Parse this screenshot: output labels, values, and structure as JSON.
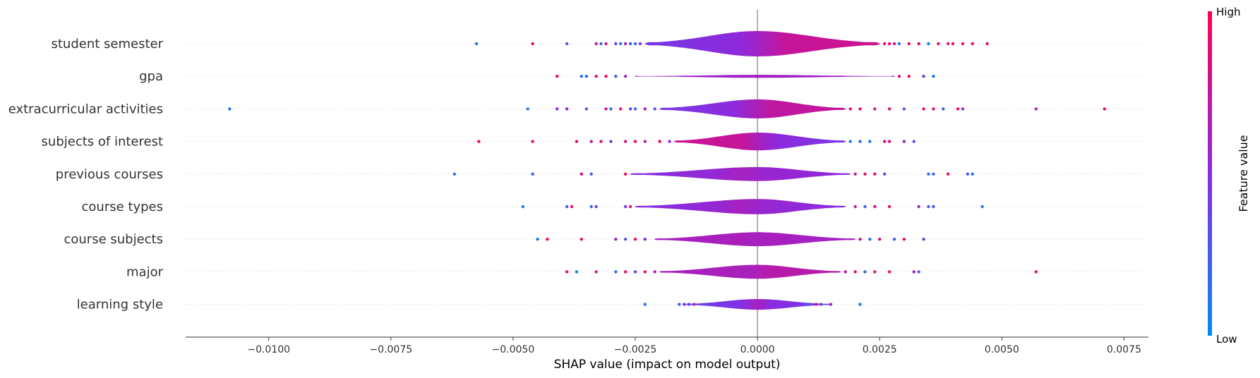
{
  "chart_data": {
    "type": "violin",
    "xlabel": "SHAP value (impact on model output)",
    "xlim": [
      -0.0117,
      0.008
    ],
    "xticks": [
      -0.01,
      -0.0075,
      -0.005,
      -0.0025,
      0.0,
      0.0025,
      0.005,
      0.0075
    ],
    "xtick_labels": [
      "−0.0100",
      "−0.0075",
      "−0.0050",
      "−0.0025",
      "0.0000",
      "0.0025",
      "0.0050",
      "0.0075"
    ],
    "zero_line": 0.0,
    "features": [
      {
        "name": "student semester",
        "violin_extent": [
          -0.0023,
          0.0025
        ],
        "violin_width": 1.0,
        "points": [
          {
            "x": -0.00575,
            "c": 0.1
          },
          {
            "x": -0.0046,
            "c": 0.95
          },
          {
            "x": -0.0039,
            "c": 0.3
          },
          {
            "x": -0.0033,
            "c": 0.7
          },
          {
            "x": -0.0032,
            "c": 0.2
          },
          {
            "x": -0.0031,
            "c": 0.8
          },
          {
            "x": -0.0029,
            "c": 0.4
          },
          {
            "x": -0.0028,
            "c": 0.1
          },
          {
            "x": -0.0027,
            "c": 0.6
          },
          {
            "x": -0.0026,
            "c": 0.3
          },
          {
            "x": -0.0025,
            "c": 0.2
          },
          {
            "x": -0.0024,
            "c": 0.5
          },
          {
            "x": 0.0026,
            "c": 0.9
          },
          {
            "x": 0.0027,
            "c": 0.95
          },
          {
            "x": 0.0028,
            "c": 0.85
          },
          {
            "x": 0.0029,
            "c": 0.1
          },
          {
            "x": 0.0031,
            "c": 0.9
          },
          {
            "x": 0.0033,
            "c": 0.95
          },
          {
            "x": 0.0035,
            "c": 0.1
          },
          {
            "x": 0.0037,
            "c": 0.9
          },
          {
            "x": 0.0039,
            "c": 0.8
          },
          {
            "x": 0.004,
            "c": 0.9
          },
          {
            "x": 0.0042,
            "c": 0.95
          },
          {
            "x": 0.0044,
            "c": 0.9
          },
          {
            "x": 0.0047,
            "c": 0.95
          }
        ]
      },
      {
        "name": "gpa",
        "violin_extent": [
          -0.0025,
          0.0028
        ],
        "violin_width": 0.12,
        "points": [
          {
            "x": -0.0041,
            "c": 0.95
          },
          {
            "x": -0.0036,
            "c": 0.1
          },
          {
            "x": -0.0035,
            "c": 0.2
          },
          {
            "x": -0.0033,
            "c": 0.9
          },
          {
            "x": -0.0031,
            "c": 0.95
          },
          {
            "x": -0.0029,
            "c": 0.2
          },
          {
            "x": -0.0027,
            "c": 0.6
          },
          {
            "x": 0.0029,
            "c": 0.8
          },
          {
            "x": 0.0031,
            "c": 0.95
          },
          {
            "x": 0.0034,
            "c": 0.4
          },
          {
            "x": 0.0036,
            "c": 0.1
          }
        ]
      },
      {
        "name": "extracurricular activities",
        "violin_extent": [
          -0.002,
          0.0018
        ],
        "violin_width": 0.75,
        "points": [
          {
            "x": -0.0108,
            "c": 0.1
          },
          {
            "x": -0.0047,
            "c": 0.1
          },
          {
            "x": -0.0041,
            "c": 0.5
          },
          {
            "x": -0.0039,
            "c": 0.6
          },
          {
            "x": -0.0035,
            "c": 0.3
          },
          {
            "x": -0.0031,
            "c": 0.8
          },
          {
            "x": -0.003,
            "c": 0.2
          },
          {
            "x": -0.0028,
            "c": 0.9
          },
          {
            "x": -0.0026,
            "c": 0.4
          },
          {
            "x": -0.0025,
            "c": 0.2
          },
          {
            "x": -0.0023,
            "c": 0.7
          },
          {
            "x": -0.0021,
            "c": 0.3
          },
          {
            "x": 0.0019,
            "c": 0.9
          },
          {
            "x": 0.0021,
            "c": 0.95
          },
          {
            "x": 0.0024,
            "c": 0.8
          },
          {
            "x": 0.0027,
            "c": 0.9
          },
          {
            "x": 0.003,
            "c": 0.3
          },
          {
            "x": 0.0034,
            "c": 0.95
          },
          {
            "x": 0.0036,
            "c": 0.9
          },
          {
            "x": 0.0038,
            "c": 0.2
          },
          {
            "x": 0.0041,
            "c": 0.95
          },
          {
            "x": 0.0042,
            "c": 0.5
          },
          {
            "x": 0.0057,
            "c": 0.6
          },
          {
            "x": 0.0071,
            "c": 0.95
          }
        ]
      },
      {
        "name": "subjects of interest",
        "violin_extent": [
          -0.0017,
          0.0018
        ],
        "violin_width": 0.7,
        "points": [
          {
            "x": -0.0057,
            "c": 0.95
          },
          {
            "x": -0.0046,
            "c": 0.95
          },
          {
            "x": -0.0037,
            "c": 0.9
          },
          {
            "x": -0.0034,
            "c": 0.6
          },
          {
            "x": -0.0032,
            "c": 0.9
          },
          {
            "x": -0.003,
            "c": 0.4
          },
          {
            "x": -0.0027,
            "c": 0.8
          },
          {
            "x": -0.0025,
            "c": 0.9
          },
          {
            "x": -0.0023,
            "c": 0.7
          },
          {
            "x": -0.002,
            "c": 0.95
          },
          {
            "x": -0.0018,
            "c": 0.5
          },
          {
            "x": 0.0019,
            "c": 0.1
          },
          {
            "x": 0.0021,
            "c": 0.2
          },
          {
            "x": 0.0023,
            "c": 0.1
          },
          {
            "x": 0.0026,
            "c": 0.9
          },
          {
            "x": 0.0027,
            "c": 0.8
          },
          {
            "x": 0.003,
            "c": 0.6
          },
          {
            "x": 0.0032,
            "c": 0.3
          }
        ]
      },
      {
        "name": "previous courses",
        "violin_extent": [
          -0.0026,
          0.0019
        ],
        "violin_width": 0.55,
        "points": [
          {
            "x": -0.0062,
            "c": 0.1
          },
          {
            "x": -0.0046,
            "c": 0.2
          },
          {
            "x": -0.0036,
            "c": 0.9
          },
          {
            "x": -0.0034,
            "c": 0.2
          },
          {
            "x": -0.0027,
            "c": 0.95
          },
          {
            "x": 0.002,
            "c": 0.7
          },
          {
            "x": 0.0022,
            "c": 0.9
          },
          {
            "x": 0.0024,
            "c": 0.95
          },
          {
            "x": 0.0026,
            "c": 0.4
          },
          {
            "x": 0.0035,
            "c": 0.1
          },
          {
            "x": 0.0036,
            "c": 0.2
          },
          {
            "x": 0.0039,
            "c": 0.9
          },
          {
            "x": 0.0043,
            "c": 0.3
          },
          {
            "x": 0.0044,
            "c": 0.1
          }
        ]
      },
      {
        "name": "course types",
        "violin_extent": [
          -0.0025,
          0.0018
        ],
        "violin_width": 0.6,
        "points": [
          {
            "x": -0.0048,
            "c": 0.1
          },
          {
            "x": -0.0039,
            "c": 0.3
          },
          {
            "x": -0.0038,
            "c": 0.95
          },
          {
            "x": -0.0034,
            "c": 0.2
          },
          {
            "x": -0.0033,
            "c": 0.4
          },
          {
            "x": -0.0027,
            "c": 0.5
          },
          {
            "x": -0.0026,
            "c": 0.9
          },
          {
            "x": 0.002,
            "c": 0.7
          },
          {
            "x": 0.0022,
            "c": 0.2
          },
          {
            "x": 0.0024,
            "c": 0.9
          },
          {
            "x": 0.0027,
            "c": 0.95
          },
          {
            "x": 0.0033,
            "c": 0.6
          },
          {
            "x": 0.0035,
            "c": 0.2
          },
          {
            "x": 0.0036,
            "c": 0.3
          },
          {
            "x": 0.0046,
            "c": 0.1
          }
        ]
      },
      {
        "name": "course subjects",
        "violin_extent": [
          -0.0021,
          0.002
        ],
        "violin_width": 0.55,
        "points": [
          {
            "x": -0.0045,
            "c": 0.1
          },
          {
            "x": -0.0043,
            "c": 0.95
          },
          {
            "x": -0.0036,
            "c": 0.9
          },
          {
            "x": -0.0029,
            "c": 0.6
          },
          {
            "x": -0.0027,
            "c": 0.3
          },
          {
            "x": -0.0025,
            "c": 0.9
          },
          {
            "x": -0.0023,
            "c": 0.5
          },
          {
            "x": 0.0021,
            "c": 0.8
          },
          {
            "x": 0.0023,
            "c": 0.2
          },
          {
            "x": 0.0025,
            "c": 0.9
          },
          {
            "x": 0.0028,
            "c": 0.3
          },
          {
            "x": 0.003,
            "c": 0.95
          },
          {
            "x": 0.0034,
            "c": 0.4
          }
        ]
      },
      {
        "name": "major",
        "violin_extent": [
          -0.002,
          0.0017
        ],
        "violin_width": 0.55,
        "points": [
          {
            "x": -0.0039,
            "c": 0.95
          },
          {
            "x": -0.0037,
            "c": 0.1
          },
          {
            "x": -0.0033,
            "c": 0.8
          },
          {
            "x": -0.0029,
            "c": 0.2
          },
          {
            "x": -0.0027,
            "c": 0.9
          },
          {
            "x": -0.0025,
            "c": 0.4
          },
          {
            "x": -0.0023,
            "c": 0.95
          },
          {
            "x": -0.0021,
            "c": 0.6
          },
          {
            "x": 0.0018,
            "c": 0.7
          },
          {
            "x": 0.002,
            "c": 0.9
          },
          {
            "x": 0.0022,
            "c": 0.2
          },
          {
            "x": 0.0024,
            "c": 0.9
          },
          {
            "x": 0.0027,
            "c": 0.95
          },
          {
            "x": 0.0032,
            "c": 0.6
          },
          {
            "x": 0.0033,
            "c": 0.3
          },
          {
            "x": 0.0057,
            "c": 0.95
          }
        ]
      },
      {
        "name": "learning style",
        "violin_extent": [
          -0.0015,
          0.0015
        ],
        "violin_width": 0.42,
        "points": [
          {
            "x": -0.0023,
            "c": 0.1
          },
          {
            "x": -0.0016,
            "c": 0.2
          },
          {
            "x": -0.0015,
            "c": 0.5
          },
          {
            "x": -0.0014,
            "c": 0.3
          },
          {
            "x": -0.0013,
            "c": 0.7
          },
          {
            "x": 0.001,
            "c": 0.2
          },
          {
            "x": 0.0012,
            "c": 0.8
          },
          {
            "x": 0.0013,
            "c": 0.3
          },
          {
            "x": 0.0015,
            "c": 0.6
          },
          {
            "x": 0.0021,
            "c": 0.1
          }
        ]
      }
    ],
    "colorbar": {
      "title": "Feature value",
      "high_label": "High",
      "low_label": "Low",
      "low_color": "#008afb",
      "mid_color": "#8a2be2",
      "high_color": "#ff0052"
    }
  }
}
